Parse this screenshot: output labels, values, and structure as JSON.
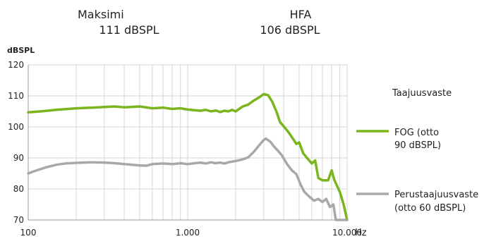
{
  "header": {
    "max_title": "Maksimi",
    "max_value": "111 dBSPL",
    "hfa_title": "HFA",
    "hfa_value": "106 dBSPL"
  },
  "chart_data": {
    "type": "line",
    "title": "Taajuusvaste",
    "ylabel": "dBSPL",
    "xlabel": "",
    "x_unit": "Hz",
    "x_scale": "log",
    "xlim": [
      100,
      10000
    ],
    "ylim": [
      70,
      120
    ],
    "x_ticks": [
      {
        "value": 100,
        "label": "100"
      },
      {
        "value": 1000,
        "label": "1.000"
      },
      {
        "value": 10000,
        "label": "10.000"
      }
    ],
    "y_ticks": [
      70,
      80,
      90,
      100,
      110,
      120
    ],
    "grid": true,
    "legend_position": "right",
    "series": [
      {
        "name_lines": [
          "FOG (otto",
          "90 dBSPL)"
        ],
        "color": "#7ab51d",
        "points": [
          [
            100,
            104.7
          ],
          [
            120,
            105.0
          ],
          [
            150,
            105.5
          ],
          [
            200,
            106.0
          ],
          [
            250,
            106.2
          ],
          [
            300,
            106.4
          ],
          [
            350,
            106.6
          ],
          [
            400,
            106.3
          ],
          [
            500,
            106.6
          ],
          [
            600,
            106.0
          ],
          [
            700,
            106.2
          ],
          [
            800,
            105.8
          ],
          [
            900,
            106.0
          ],
          [
            1000,
            105.6
          ],
          [
            1100,
            105.4
          ],
          [
            1200,
            105.2
          ],
          [
            1300,
            105.5
          ],
          [
            1400,
            105.0
          ],
          [
            1500,
            105.3
          ],
          [
            1600,
            104.8
          ],
          [
            1700,
            105.2
          ],
          [
            1800,
            105.0
          ],
          [
            1900,
            105.5
          ],
          [
            2000,
            105.0
          ],
          [
            2200,
            106.5
          ],
          [
            2400,
            107.2
          ],
          [
            2600,
            108.5
          ],
          [
            2800,
            109.5
          ],
          [
            3000,
            110.6
          ],
          [
            3200,
            110.2
          ],
          [
            3400,
            108.0
          ],
          [
            3600,
            105.0
          ],
          [
            3800,
            101.5
          ],
          [
            4000,
            100.2
          ],
          [
            4300,
            98.2
          ],
          [
            4600,
            96.0
          ],
          [
            4800,
            94.5
          ],
          [
            5000,
            95.0
          ],
          [
            5300,
            91.5
          ],
          [
            5600,
            90.0
          ],
          [
            6000,
            88.2
          ],
          [
            6300,
            89.2
          ],
          [
            6600,
            83.5
          ],
          [
            7000,
            82.8
          ],
          [
            7600,
            82.8
          ],
          [
            8000,
            86.0
          ],
          [
            8300,
            83.0
          ],
          [
            9000,
            79.0
          ],
          [
            9500,
            75.0
          ],
          [
            10000,
            70.0
          ]
        ]
      },
      {
        "name_lines": [
          "Perustaajuusvaste",
          "(otto 60 dBSPL)"
        ],
        "color": "#a8a8a8",
        "points": [
          [
            100,
            85.0
          ],
          [
            110,
            85.8
          ],
          [
            130,
            87.0
          ],
          [
            150,
            87.8
          ],
          [
            170,
            88.2
          ],
          [
            200,
            88.4
          ],
          [
            250,
            88.6
          ],
          [
            300,
            88.5
          ],
          [
            350,
            88.3
          ],
          [
            400,
            88.0
          ],
          [
            450,
            87.8
          ],
          [
            500,
            87.6
          ],
          [
            550,
            87.5
          ],
          [
            600,
            88.0
          ],
          [
            700,
            88.2
          ],
          [
            800,
            88.0
          ],
          [
            900,
            88.3
          ],
          [
            1000,
            88.0
          ],
          [
            1100,
            88.3
          ],
          [
            1200,
            88.5
          ],
          [
            1300,
            88.2
          ],
          [
            1400,
            88.6
          ],
          [
            1500,
            88.3
          ],
          [
            1600,
            88.5
          ],
          [
            1700,
            88.2
          ],
          [
            1800,
            88.6
          ],
          [
            2000,
            89.0
          ],
          [
            2200,
            89.5
          ],
          [
            2400,
            90.2
          ],
          [
            2600,
            92.0
          ],
          [
            2800,
            94.0
          ],
          [
            3000,
            95.8
          ],
          [
            3100,
            96.2
          ],
          [
            3300,
            95.2
          ],
          [
            3500,
            93.5
          ],
          [
            3700,
            92.2
          ],
          [
            3900,
            90.8
          ],
          [
            4200,
            88.0
          ],
          [
            4500,
            86.0
          ],
          [
            4800,
            84.8
          ],
          [
            5100,
            81.5
          ],
          [
            5400,
            79.0
          ],
          [
            5800,
            77.5
          ],
          [
            6200,
            76.2
          ],
          [
            6600,
            76.8
          ],
          [
            7000,
            75.8
          ],
          [
            7400,
            76.8
          ],
          [
            7800,
            74.2
          ],
          [
            8200,
            75.0
          ],
          [
            8500,
            70.0
          ],
          [
            10000,
            70.0
          ]
        ]
      }
    ]
  }
}
